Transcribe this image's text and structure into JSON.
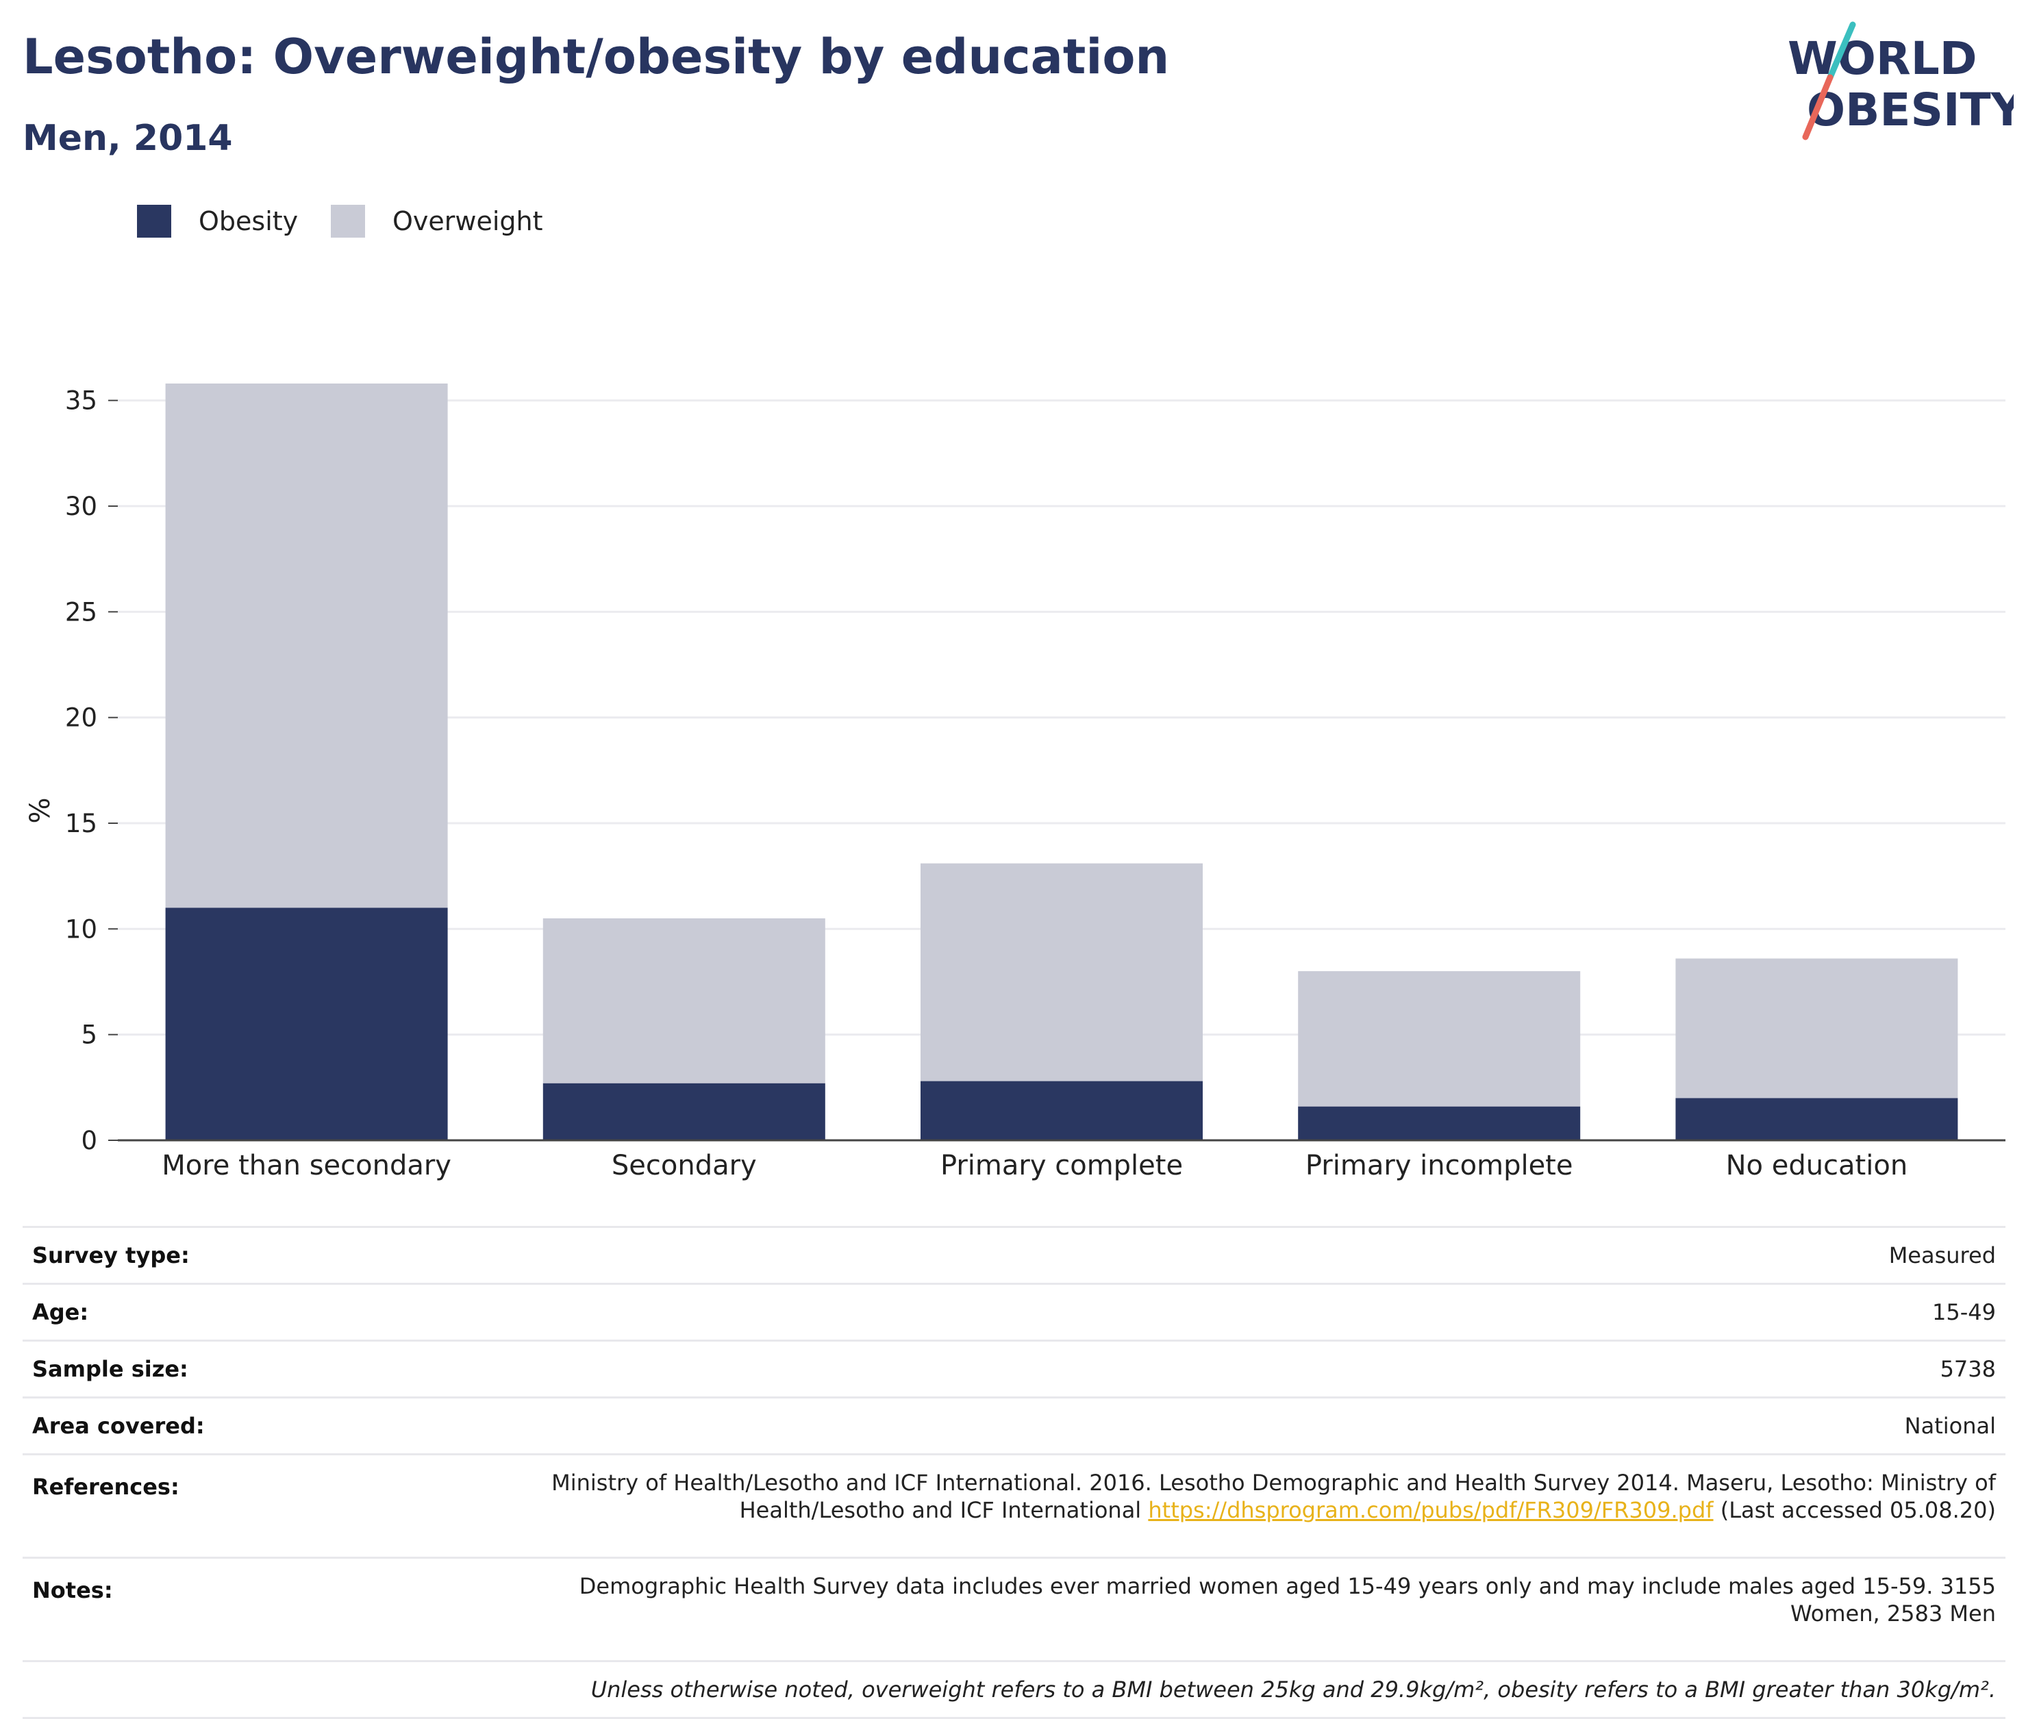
{
  "header": {
    "title": "Lesotho: Overweight/obesity by education",
    "subtitle": "Men, 2014"
  },
  "logo": {
    "line1": "WORLD",
    "line2": "OBESITY",
    "colors": {
      "text": "#283560",
      "slash_teal": "#3bbfbf",
      "slash_coral": "#e8675a"
    }
  },
  "legend": {
    "items": [
      {
        "label": "Obesity",
        "color": "#2a3761"
      },
      {
        "label": "Overweight",
        "color": "#c9cbd6"
      }
    ]
  },
  "chart_data": {
    "type": "bar",
    "stacked": true,
    "categories": [
      "More than secondary",
      "Secondary",
      "Primary complete",
      "Primary incomplete",
      "No education"
    ],
    "series": [
      {
        "name": "Obesity",
        "color": "#2a3761",
        "values": [
          11.0,
          2.7,
          2.8,
          1.6,
          2.0
        ]
      },
      {
        "name": "Overweight",
        "color": "#c9cbd6",
        "values": [
          24.8,
          7.8,
          10.3,
          6.4,
          6.6
        ]
      }
    ],
    "ylabel": "%",
    "ylim": [
      0,
      35.8
    ],
    "yticks": [
      0,
      5,
      10,
      15,
      20,
      25,
      30,
      35
    ],
    "grid": true
  },
  "info": {
    "survey_type": {
      "label": "Survey type:",
      "value": "Measured"
    },
    "age": {
      "label": "Age:",
      "value": "15-49"
    },
    "sample_size": {
      "label": "Sample size:",
      "value": "5738"
    },
    "area_covered": {
      "label": "Area covered:",
      "value": "National"
    },
    "references": {
      "label": "References:",
      "line1": "Ministry of Health/Lesotho and ICF International. 2016. Lesotho Demographic and Health Survey 2014. Maseru, Lesotho: Ministry of",
      "line2_pre": "Health/Lesotho and ICF International ",
      "link": "https://dhsprogram.com/pubs/pdf/FR309/FR309.pdf",
      "line2_post": " (Last accessed 05.08.20)"
    },
    "notes": {
      "label": "Notes:",
      "line1": "Demographic Health Survey data includes ever married women aged 15-49 years only and may include males aged 15-59. 3155",
      "line2": "Women, 2583 Men"
    },
    "footnote": "Unless otherwise noted, overweight refers to a BMI between 25kg and 29.9kg/m², obesity refers to a BMI greater than 30kg/m²."
  }
}
